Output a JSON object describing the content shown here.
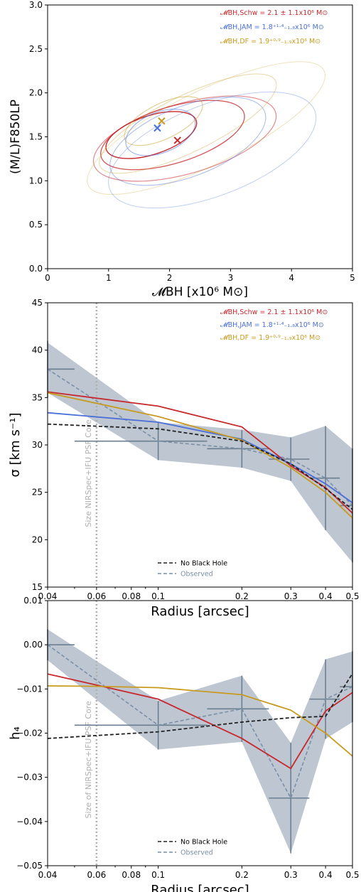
{
  "colors": {
    "schw": "#c8282d",
    "jam": "#4a6fd8",
    "df": "#c89a1e",
    "nobh": "#222222",
    "observed": "#7a8fa8",
    "band": "#9aa8b8",
    "errbar": "#6c7f90",
    "psfline": "#b0b0b0"
  },
  "legend": {
    "schw": "𝓜BH,Schw = 2.1 ± 1.1x10⁶ M⊙",
    "jam": "𝓜BH,JAM = 1.8⁺¹·⁴₋₁.₈x10⁶ M⊙",
    "df": "𝓜BH,DF = 1.9⁺⁰·⁹₋₁.₉x10⁶ M⊙",
    "nobh": "No Black Hole",
    "observed": "Observed"
  },
  "annotations": {
    "psf_mid": "Size NIRSpec+IFU PSF Core",
    "psf_bottom": "Size of NIRSpec+IFU PSF Core"
  },
  "chart_data": [
    {
      "type": "contour",
      "xlabel": "𝓜BH [x10⁶ M⊙]",
      "ylabel": "(M/L)F850LP",
      "xlim": [
        0,
        5
      ],
      "ylim": [
        0.0,
        3.0
      ],
      "xticks": [
        "0",
        "1",
        "2",
        "3",
        "4",
        "5"
      ],
      "yticks": [
        "0.0",
        "0.5",
        "1.0",
        "1.5",
        "2.0",
        "2.5",
        "3.0"
      ],
      "best_fits": [
        {
          "name": "Schw",
          "x": 2.13,
          "y": 1.46
        },
        {
          "name": "JAM",
          "x": 1.8,
          "y": 1.6
        },
        {
          "name": "DF",
          "x": 1.87,
          "y": 1.68
        }
      ]
    },
    {
      "type": "line",
      "xscale": "log",
      "xlabel": "Radius [arcsec]",
      "ylabel": "σ [km s⁻¹]",
      "xlim": [
        0.04,
        0.5
      ],
      "ylim": [
        15,
        45
      ],
      "xticks": [
        "0.04",
        "0.06",
        "0.08",
        "0.1",
        "0.2",
        "0.3",
        "0.4",
        "0.5"
      ],
      "yticks": [
        "15",
        "20",
        "25",
        "30",
        "35",
        "40",
        "45"
      ],
      "observed": {
        "x": [
          0.04,
          0.1,
          0.2,
          0.3,
          0.4,
          0.5
        ],
        "y": [
          38.0,
          30.4,
          29.6,
          28.5,
          26.5,
          23.6
        ],
        "err": [
          3.0,
          2.0,
          2.0,
          2.3,
          5.5,
          6.0
        ],
        "xerr_left": [
          0.04,
          0.05,
          0.15,
          0.25,
          0.35,
          0.45
        ],
        "xerr_right": [
          0.05,
          0.15,
          0.25,
          0.35,
          0.45,
          0.5
        ]
      },
      "band": {
        "x": [
          0.04,
          0.1,
          0.2,
          0.3,
          0.4,
          0.5
        ],
        "low": [
          35.5,
          28.4,
          27.6,
          26.2,
          21.0,
          17.6
        ],
        "high": [
          40.8,
          32.4,
          31.6,
          30.8,
          32.0,
          29.6
        ]
      },
      "series": [
        {
          "name": "Schw",
          "x": [
            0.04,
            0.1,
            0.2,
            0.3,
            0.4,
            0.5
          ],
          "y": [
            35.6,
            34.1,
            31.9,
            27.8,
            25.5,
            22.8
          ]
        },
        {
          "name": "JAM",
          "x": [
            0.04,
            0.1,
            0.2,
            0.3,
            0.4,
            0.5
          ],
          "y": [
            33.4,
            32.4,
            30.6,
            28.0,
            25.9,
            23.9
          ]
        },
        {
          "name": "DF",
          "x": [
            0.04,
            0.1,
            0.2,
            0.3,
            0.4,
            0.5
          ],
          "y": [
            35.5,
            33.0,
            30.5,
            27.6,
            25.0,
            22.3
          ]
        },
        {
          "name": "No Black Hole",
          "x": [
            0.04,
            0.1,
            0.2,
            0.3,
            0.4,
            0.5
          ],
          "y": [
            32.2,
            31.7,
            30.4,
            28.0,
            25.4,
            23.2
          ]
        }
      ]
    },
    {
      "type": "line",
      "xscale": "log",
      "xlabel": "Radius [arcsec]",
      "ylabel": "h₄",
      "xlim": [
        0.04,
        0.5
      ],
      "ylim": [
        -0.05,
        0.01
      ],
      "xticks": [
        "0.04",
        "0.06",
        "0.08",
        "0.1",
        "0.2",
        "0.3",
        "0.4",
        "0.5"
      ],
      "yticks": [
        "−0.05",
        "−0.04",
        "−0.03",
        "−0.02",
        "−0.01",
        "0.00",
        "0.01"
      ],
      "observed": {
        "x": [
          0.04,
          0.1,
          0.2,
          0.3,
          0.4,
          0.5
        ],
        "y": [
          0.0,
          -0.0182,
          -0.0145,
          -0.0347,
          -0.0123,
          -0.0095
        ],
        "err": [
          0.0035,
          0.0055,
          0.0075,
          0.0125,
          0.009,
          0.008
        ],
        "xerr_left": [
          0.04,
          0.05,
          0.15,
          0.25,
          0.35,
          0.45
        ],
        "xerr_right": [
          0.05,
          0.15,
          0.25,
          0.35,
          0.45,
          0.5
        ]
      },
      "band": {
        "x": [
          0.04,
          0.1,
          0.2,
          0.3,
          0.4,
          0.5
        ],
        "low": [
          -0.0035,
          -0.0237,
          -0.022,
          -0.0472,
          -0.0213,
          -0.0175
        ],
        "high": [
          0.0035,
          -0.0127,
          -0.007,
          -0.0222,
          -0.0033,
          -0.0015
        ]
      },
      "series": [
        {
          "name": "Schw",
          "x": [
            0.04,
            0.1,
            0.2,
            0.3,
            0.4,
            0.5
          ],
          "y": [
            -0.0066,
            -0.0123,
            -0.0212,
            -0.028,
            -0.015,
            -0.0108
          ]
        },
        {
          "name": "DF",
          "x": [
            0.04,
            0.06,
            0.1,
            0.2,
            0.3,
            0.4,
            0.5
          ],
          "y": [
            -0.0093,
            -0.0094,
            -0.0097,
            -0.0113,
            -0.0148,
            -0.02,
            -0.0252
          ]
        },
        {
          "name": "No Black Hole",
          "x": [
            0.04,
            0.1,
            0.2,
            0.3,
            0.4,
            0.5
          ],
          "y": [
            -0.0212,
            -0.0197,
            -0.0175,
            -0.0165,
            -0.0162,
            -0.0065
          ]
        }
      ]
    }
  ]
}
